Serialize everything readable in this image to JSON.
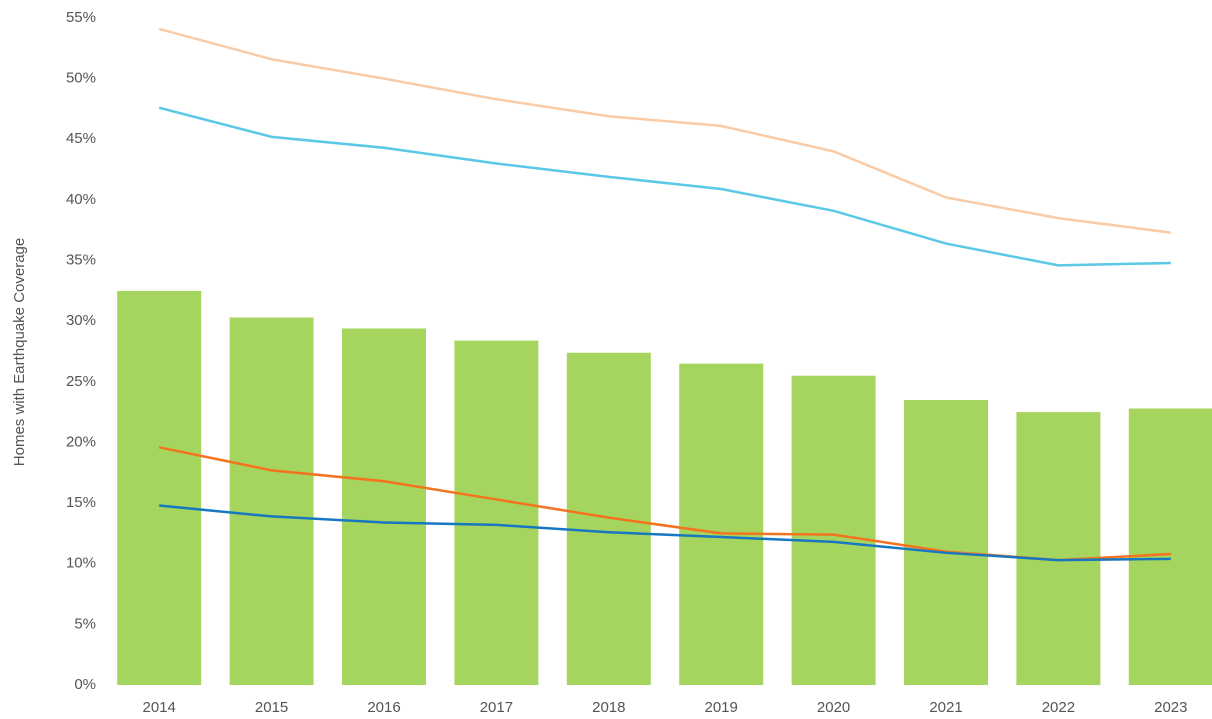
{
  "chart_data": {
    "type": "bar",
    "y_label": "Homes with Earthquake Coverage",
    "categories": [
      "2014",
      "2015",
      "2016",
      "2017",
      "2018",
      "2019",
      "2020",
      "2021",
      "2022",
      "2023"
    ],
    "series": [
      {
        "type": "bar",
        "color": "#a5d55f",
        "values": [
          32.5,
          30.3,
          29.4,
          28.4,
          27.4,
          26.5,
          25.5,
          23.5,
          22.5,
          22.8
        ]
      },
      {
        "type": "line",
        "color": "#f9cba7",
        "values": [
          54.1,
          51.6,
          50.0,
          48.3,
          46.9,
          46.1,
          44.0,
          40.2,
          38.5,
          37.3
        ]
      },
      {
        "type": "line",
        "color": "#5bc9e6",
        "values": [
          47.6,
          45.2,
          44.3,
          43.0,
          41.9,
          40.9,
          39.1,
          36.4,
          34.6,
          34.8
        ]
      },
      {
        "type": "line",
        "color": "#f4731f",
        "values": [
          19.6,
          17.7,
          16.8,
          15.3,
          13.8,
          12.5,
          12.4,
          11.0,
          10.3,
          10.8
        ]
      },
      {
        "type": "line",
        "color": "#1877c1",
        "values": [
          14.8,
          13.9,
          13.4,
          13.2,
          12.6,
          12.2,
          11.8,
          10.9,
          10.3,
          10.4
        ]
      }
    ],
    "ylim": [
      0,
      55
    ],
    "yticks": [
      {
        "value": 0,
        "label": "0%"
      },
      {
        "value": 5,
        "label": "5%"
      },
      {
        "value": 10,
        "label": "10%"
      },
      {
        "value": 15,
        "label": "15%"
      },
      {
        "value": 20,
        "label": "20%"
      },
      {
        "value": 25,
        "label": "25%"
      },
      {
        "value": 30,
        "label": "30%"
      },
      {
        "value": 35,
        "label": "35%"
      },
      {
        "value": 40,
        "label": "40%"
      },
      {
        "value": 45,
        "label": "45%"
      },
      {
        "value": 50,
        "label": "50%"
      },
      {
        "value": 55,
        "label": "55%"
      }
    ],
    "grid": false
  }
}
